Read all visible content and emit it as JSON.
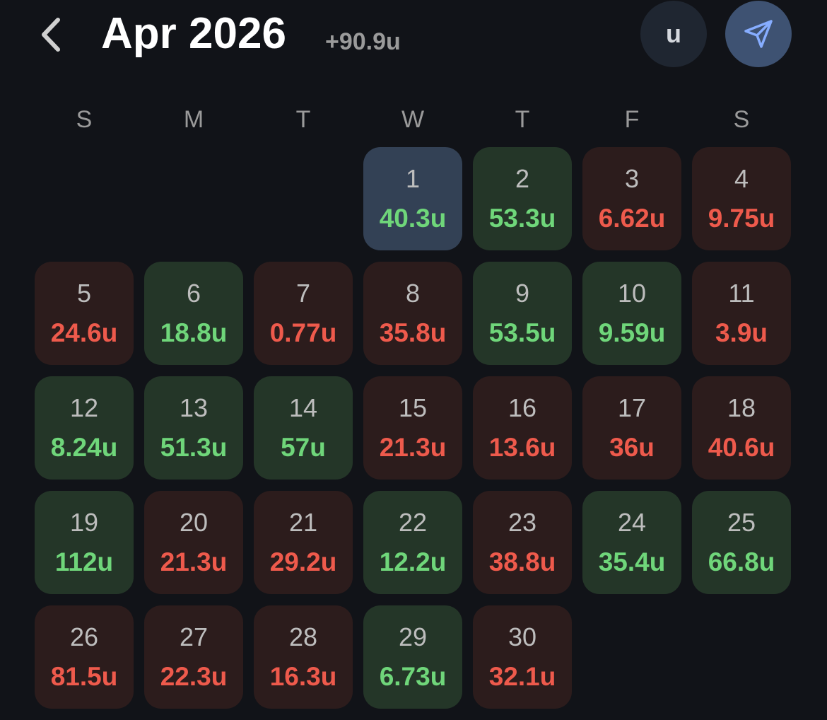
{
  "header": {
    "title": "Apr 2026",
    "total": "+90.9u",
    "unit_button": "u"
  },
  "weekdays": [
    "S",
    "M",
    "T",
    "W",
    "T",
    "F",
    "S"
  ],
  "weeks": [
    [
      null,
      null,
      null,
      {
        "day": 1,
        "amount": "40.3u",
        "tone": "today-win"
      },
      {
        "day": 2,
        "amount": "53.3u",
        "tone": "win"
      },
      {
        "day": 3,
        "amount": "6.62u",
        "tone": "loss"
      },
      {
        "day": 4,
        "amount": "9.75u",
        "tone": "loss"
      }
    ],
    [
      {
        "day": 5,
        "amount": "24.6u",
        "tone": "loss"
      },
      {
        "day": 6,
        "amount": "18.8u",
        "tone": "win"
      },
      {
        "day": 7,
        "amount": "0.77u",
        "tone": "loss"
      },
      {
        "day": 8,
        "amount": "35.8u",
        "tone": "loss"
      },
      {
        "day": 9,
        "amount": "53.5u",
        "tone": "win"
      },
      {
        "day": 10,
        "amount": "9.59u",
        "tone": "win"
      },
      {
        "day": 11,
        "amount": "3.9u",
        "tone": "loss"
      }
    ],
    [
      {
        "day": 12,
        "amount": "8.24u",
        "tone": "win"
      },
      {
        "day": 13,
        "amount": "51.3u",
        "tone": "win"
      },
      {
        "day": 14,
        "amount": "57u",
        "tone": "win"
      },
      {
        "day": 15,
        "amount": "21.3u",
        "tone": "loss"
      },
      {
        "day": 16,
        "amount": "13.6u",
        "tone": "loss"
      },
      {
        "day": 17,
        "amount": "36u",
        "tone": "loss"
      },
      {
        "day": 18,
        "amount": "40.6u",
        "tone": "loss"
      }
    ],
    [
      {
        "day": 19,
        "amount": "112u",
        "tone": "win"
      },
      {
        "day": 20,
        "amount": "21.3u",
        "tone": "loss"
      },
      {
        "day": 21,
        "amount": "29.2u",
        "tone": "loss"
      },
      {
        "day": 22,
        "amount": "12.2u",
        "tone": "win"
      },
      {
        "day": 23,
        "amount": "38.8u",
        "tone": "loss"
      },
      {
        "day": 24,
        "amount": "35.4u",
        "tone": "win"
      },
      {
        "day": 25,
        "amount": "66.8u",
        "tone": "win"
      }
    ],
    [
      {
        "day": 26,
        "amount": "81.5u",
        "tone": "loss"
      },
      {
        "day": 27,
        "amount": "22.3u",
        "tone": "loss"
      },
      {
        "day": 28,
        "amount": "16.3u",
        "tone": "loss"
      },
      {
        "day": 29,
        "amount": "6.73u",
        "tone": "win"
      },
      {
        "day": 30,
        "amount": "32.1u",
        "tone": "loss"
      },
      null,
      null
    ]
  ]
}
